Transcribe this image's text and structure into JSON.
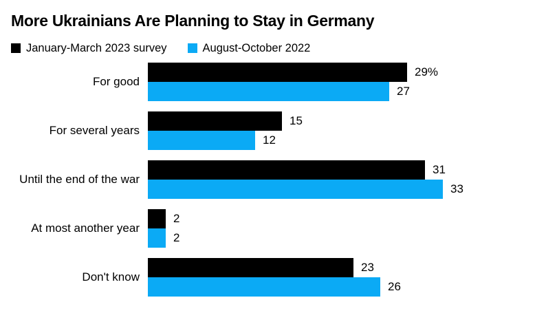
{
  "title": "More Ukrainians Are Planning to Stay in Germany",
  "legend": [
    {
      "label": "January-March 2023 survey",
      "color": "#000000"
    },
    {
      "label": "August-October 2022",
      "color": "#0baaf5"
    }
  ],
  "colors": {
    "series_black": "#000000",
    "series_blue": "#0baaf5",
    "background": "#ffffff",
    "text": "#000000"
  },
  "chart_data": {
    "type": "bar",
    "orientation": "horizontal",
    "title": "More Ukrainians Are Planning to Stay in Germany",
    "categories": [
      "For good",
      "For several years",
      "Until the end of the war",
      "At most another year",
      "Don't know"
    ],
    "series": [
      {
        "name": "January-March 2023 survey",
        "color": "#000000",
        "values": [
          29,
          15,
          31,
          2,
          23
        ],
        "labels": [
          "29%",
          "15",
          "31",
          "2",
          "23"
        ]
      },
      {
        "name": "August-October 2022",
        "color": "#0baaf5",
        "values": [
          27,
          12,
          33,
          2,
          26
        ],
        "labels": [
          "27",
          "12",
          "33",
          "2",
          "26"
        ]
      }
    ],
    "value_unit": "%",
    "xlim": [
      0,
      33
    ],
    "grid": false,
    "legend_position": "top",
    "value_labels": "outside-end"
  }
}
